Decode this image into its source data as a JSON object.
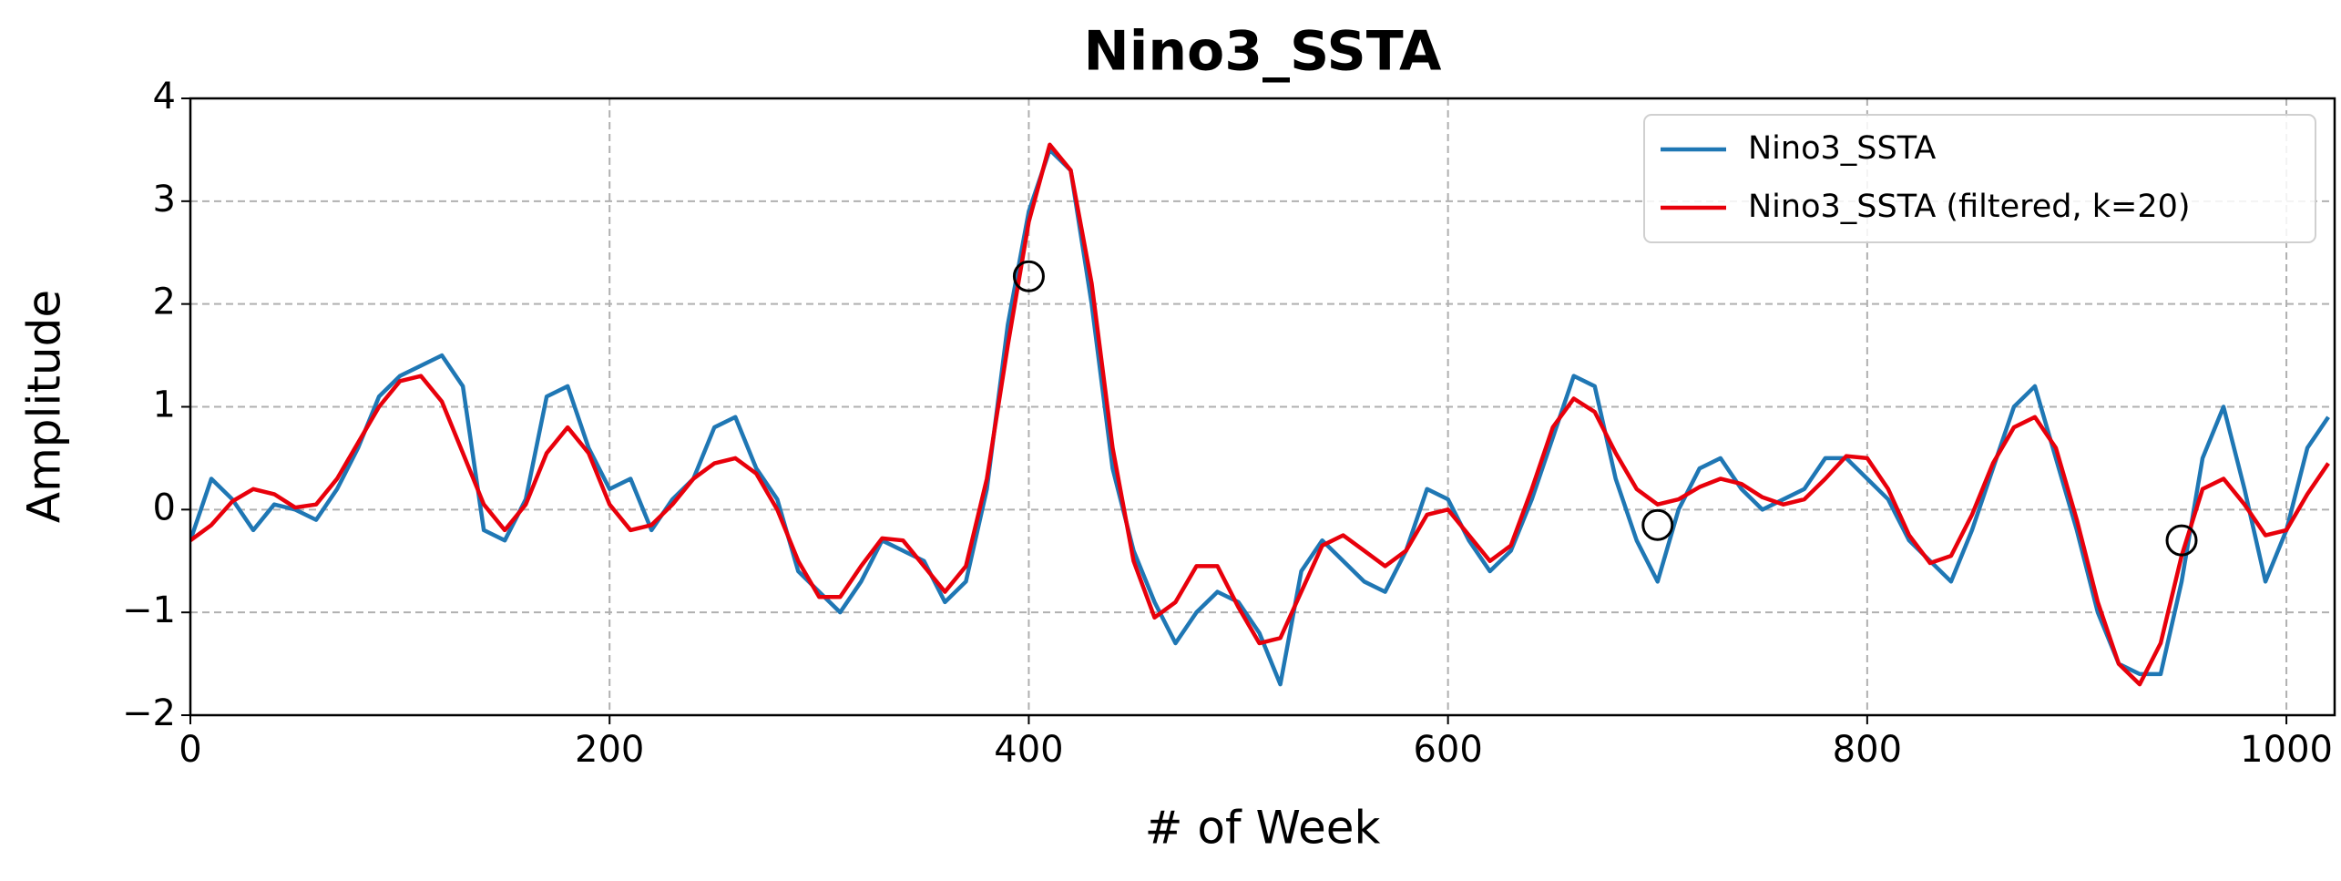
{
  "chart_data": {
    "type": "line",
    "title": "Nino3_SSTA",
    "xlabel": "# of Week",
    "ylabel": "Amplitude",
    "x": [
      0,
      10,
      20,
      30,
      40,
      50,
      60,
      70,
      80,
      90,
      100,
      110,
      120,
      130,
      140,
      150,
      160,
      170,
      180,
      190,
      200,
      210,
      220,
      230,
      240,
      250,
      260,
      270,
      280,
      290,
      300,
      310,
      320,
      330,
      340,
      350,
      360,
      370,
      380,
      390,
      400,
      410,
      420,
      430,
      440,
      450,
      460,
      470,
      480,
      490,
      500,
      510,
      520,
      530,
      540,
      550,
      560,
      570,
      580,
      590,
      600,
      610,
      620,
      630,
      640,
      650,
      660,
      670,
      680,
      690,
      700,
      710,
      720,
      730,
      740,
      750,
      760,
      770,
      780,
      790,
      800,
      810,
      820,
      830,
      840,
      850,
      860,
      870,
      880,
      890,
      900,
      910,
      920,
      930,
      940,
      950,
      960,
      970,
      980,
      990,
      1000,
      1010,
      1020
    ],
    "series": [
      {
        "name": "Nino3_SSTA",
        "color": "#1f77b4",
        "values": [
          -0.3,
          0.3,
          0.1,
          -0.2,
          0.05,
          0.0,
          -0.1,
          0.2,
          0.6,
          1.1,
          1.3,
          1.4,
          1.5,
          1.2,
          -0.2,
          -0.3,
          0.1,
          1.1,
          1.2,
          0.6,
          0.2,
          0.3,
          -0.2,
          0.1,
          0.3,
          0.8,
          0.9,
          0.4,
          0.1,
          -0.6,
          -0.8,
          -1.0,
          -0.7,
          -0.3,
          -0.4,
          -0.5,
          -0.9,
          -0.7,
          0.2,
          1.8,
          2.9,
          3.5,
          3.3,
          2.0,
          0.4,
          -0.4,
          -0.9,
          -1.3,
          -1.0,
          -0.8,
          -0.9,
          -1.2,
          -1.7,
          -0.6,
          -0.3,
          -0.5,
          -0.7,
          -0.8,
          -0.4,
          0.2,
          0.1,
          -0.3,
          -0.6,
          -0.4,
          0.1,
          0.7,
          1.3,
          1.2,
          0.3,
          -0.3,
          -0.7,
          0.0,
          0.4,
          0.5,
          0.2,
          0.0,
          0.1,
          0.2,
          0.5,
          0.5,
          0.3,
          0.1,
          -0.3,
          -0.5,
          -0.7,
          -0.2,
          0.4,
          1.0,
          1.2,
          0.5,
          -0.2,
          -1.0,
          -1.5,
          -1.6,
          -1.6,
          -0.7,
          0.5,
          1.0,
          0.2,
          -0.7,
          -0.2,
          0.6,
          0.9
        ]
      },
      {
        "name": "Nino3_SSTA (filtered, k=20)",
        "color": "#e8000b",
        "values": [
          -0.3,
          -0.15,
          0.08,
          0.2,
          0.15,
          0.02,
          0.05,
          0.3,
          0.65,
          1.0,
          1.25,
          1.3,
          1.05,
          0.55,
          0.05,
          -0.2,
          0.05,
          0.55,
          0.8,
          0.55,
          0.05,
          -0.2,
          -0.15,
          0.05,
          0.3,
          0.45,
          0.5,
          0.35,
          0.0,
          -0.5,
          -0.85,
          -0.85,
          -0.55,
          -0.28,
          -0.3,
          -0.55,
          -0.8,
          -0.55,
          0.3,
          1.6,
          2.8,
          3.55,
          3.3,
          2.2,
          0.6,
          -0.5,
          -1.05,
          -0.9,
          -0.55,
          -0.55,
          -0.95,
          -1.3,
          -1.25,
          -0.8,
          -0.35,
          -0.25,
          -0.4,
          -0.55,
          -0.4,
          -0.05,
          0.0,
          -0.25,
          -0.5,
          -0.35,
          0.2,
          0.8,
          1.08,
          0.95,
          0.55,
          0.2,
          0.05,
          0.1,
          0.22,
          0.3,
          0.25,
          0.12,
          0.05,
          0.1,
          0.3,
          0.52,
          0.5,
          0.2,
          -0.25,
          -0.52,
          -0.45,
          -0.05,
          0.45,
          0.8,
          0.9,
          0.6,
          -0.1,
          -0.9,
          -1.5,
          -1.7,
          -1.3,
          -0.45,
          0.2,
          0.3,
          0.05,
          -0.25,
          -0.2,
          0.15,
          0.45
        ]
      }
    ],
    "markers": {
      "x": [
        400,
        700,
        950
      ],
      "y": [
        2.27,
        -0.15,
        -0.3
      ],
      "color": "#000000"
    },
    "xlim": [
      0,
      1023
    ],
    "ylim": [
      -2,
      4
    ],
    "xticks": [
      0,
      200,
      400,
      600,
      800,
      1000
    ],
    "yticks": [
      {
        "value": -2,
        "label": "−2"
      },
      {
        "value": -1,
        "label": "−1"
      },
      0,
      1,
      2,
      3,
      4
    ],
    "grid": true,
    "legend": "upper right"
  }
}
